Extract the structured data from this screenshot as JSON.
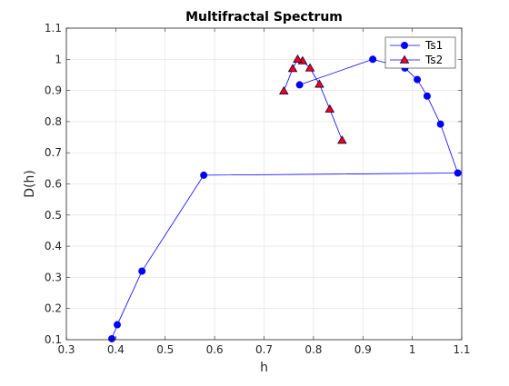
{
  "chart_data": {
    "type": "line",
    "title": "Multifractal Spectrum",
    "xlabel": "h",
    "ylabel": "D(h)",
    "xlim": [
      0.3,
      1.1
    ],
    "ylim": [
      0.1,
      1.1
    ],
    "xticks": [
      "0.3",
      "0.4",
      "0.5",
      "0.6",
      "0.7",
      "0.8",
      "0.9",
      "1",
      "1.1"
    ],
    "yticks": [
      "0.1",
      "0.2",
      "0.3",
      "0.4",
      "0.5",
      "0.6",
      "0.7",
      "0.8",
      "0.9",
      "1",
      "1.1"
    ],
    "grid": true,
    "legend_position": "top-right",
    "series": [
      {
        "name": "Ts1",
        "marker": "circle",
        "color": "#0000ff",
        "marker_fill": "#0000ff",
        "points": [
          [
            0.772,
            0.918
          ],
          [
            0.92,
            1.0
          ],
          [
            0.985,
            0.972
          ],
          [
            1.01,
            0.935
          ],
          [
            1.03,
            0.882
          ],
          [
            1.057,
            0.792
          ],
          [
            1.092,
            0.635
          ],
          [
            0.578,
            0.628
          ],
          [
            0.453,
            0.32
          ],
          [
            0.403,
            0.148
          ],
          [
            0.392,
            0.103
          ]
        ]
      },
      {
        "name": "Ts2",
        "marker": "triangle",
        "color": "#0000ff",
        "marker_fill": "#ff0000",
        "points": [
          [
            0.858,
            0.74
          ],
          [
            0.833,
            0.84
          ],
          [
            0.812,
            0.92
          ],
          [
            0.793,
            0.972
          ],
          [
            0.778,
            0.995
          ],
          [
            0.768,
            1.0
          ],
          [
            0.758,
            0.97
          ],
          [
            0.74,
            0.898
          ]
        ]
      }
    ]
  }
}
